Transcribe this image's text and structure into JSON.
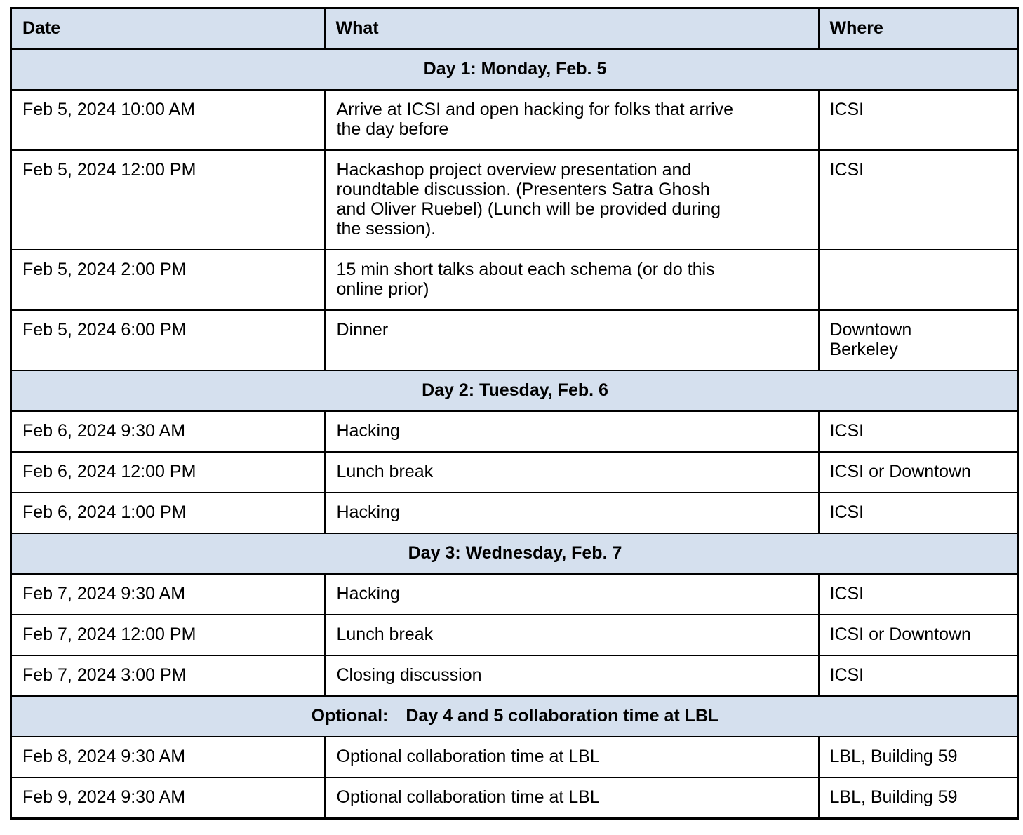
{
  "colors": {
    "header_bg": "#d5e0ee",
    "border": "#000000",
    "text": "#000000"
  },
  "table": {
    "columns": [
      "Date",
      "What",
      "Where"
    ],
    "sections": [
      {
        "title": "Day 1: Monday, Feb. 5",
        "rows": [
          {
            "date": "Feb 5, 2024 10:00 AM",
            "what": "Arrive at ICSI and open hacking for folks that arrive\nthe day before",
            "where": "ICSI"
          },
          {
            "date": "Feb 5, 2024 12:00 PM",
            "what": "Hackashop project overview presentation and\nroundtable discussion. (Presenters Satra Ghosh\nand Oliver Ruebel) (Lunch will be provided during\nthe session).",
            "where": "ICSI"
          },
          {
            "date": "Feb 5, 2024 2:00 PM",
            "what": "15 min short talks about each schema (or do this\nonline prior)",
            "where": ""
          },
          {
            "date": "Feb 5, 2024 6:00 PM",
            "what": "Dinner",
            "where": "Downtown\nBerkeley"
          }
        ]
      },
      {
        "title": "Day 2: Tuesday, Feb. 6",
        "rows": [
          {
            "date": "Feb 6, 2024 9:30 AM",
            "what": "Hacking",
            "where": "ICSI"
          },
          {
            "date": "Feb 6, 2024 12:00 PM",
            "what": "Lunch break",
            "where": "ICSI or Downtown"
          },
          {
            "date": "Feb 6, 2024 1:00 PM",
            "what": "Hacking",
            "where": "ICSI"
          }
        ]
      },
      {
        "title": "Day 3: Wednesday, Feb. 7",
        "rows": [
          {
            "date": "Feb 7, 2024 9:30 AM",
            "what": "Hacking",
            "where": "ICSI"
          },
          {
            "date": "Feb 7, 2024 12:00 PM",
            "what": "Lunch break",
            "where": "ICSI or Downtown"
          },
          {
            "date": "Feb 7, 2024 3:00 PM",
            "what": "Closing discussion",
            "where": "ICSI"
          }
        ]
      },
      {
        "title": "Optional: Day 4 and 5 collaboration time at LBL",
        "rows": [
          {
            "date": "Feb 8, 2024 9:30 AM",
            "what": "Optional collaboration time at LBL",
            "where": "LBL, Building 59"
          },
          {
            "date": "Feb 9, 2024 9:30 AM",
            "what": "Optional collaboration time at LBL",
            "where": "LBL, Building 59"
          }
        ]
      }
    ]
  }
}
